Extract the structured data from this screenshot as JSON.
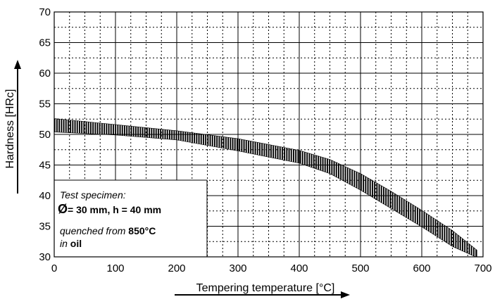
{
  "chart_data": {
    "type": "area",
    "xlabel": "Tempering temperature [°C]",
    "ylabel": "Hardness [HRc]",
    "xlim": [
      0,
      700
    ],
    "ylim": [
      30,
      70
    ],
    "x_ticks": [
      "0",
      "100",
      "200",
      "300",
      "400",
      "500",
      "600",
      "700"
    ],
    "y_ticks": [
      "30",
      "35",
      "40",
      "45",
      "50",
      "55",
      "60",
      "65",
      "70"
    ],
    "grid": "dotted (25 °C, 2.5 HRc) with solid lines every 100 °C and 5 HRc",
    "band": {
      "x": [
        0,
        100,
        200,
        300,
        400,
        450,
        500,
        550,
        600,
        650,
        690
      ],
      "upper": [
        52.6,
        51.6,
        50.6,
        49.3,
        47.4,
        45.9,
        43.6,
        40.7,
        37.6,
        34.3,
        31.1
      ],
      "lower": [
        50.4,
        49.9,
        49.1,
        47.3,
        45.3,
        43.6,
        40.9,
        37.9,
        34.9,
        31.7,
        29.9
      ]
    },
    "annotation": {
      "line1": "Test specimen:",
      "line2_symbol": "Ø",
      "line2_text": "= 30 mm, h = 40 mm",
      "line3_prefix": "quenched from ",
      "line3_value": "850°C",
      "line4_prefix": "in ",
      "line4_value": "oil"
    }
  }
}
